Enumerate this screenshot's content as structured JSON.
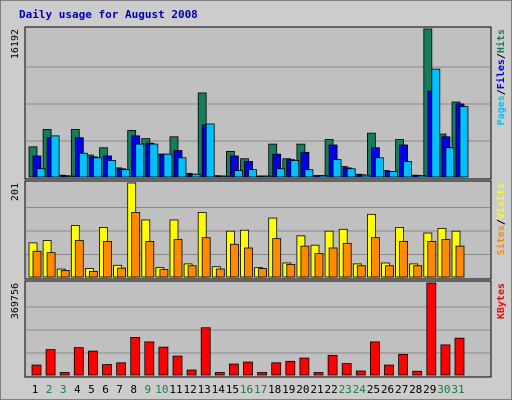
{
  "window": {
    "title": "Daily usage for August 2008"
  },
  "colors": {
    "background": "#cccccc",
    "plot_background": "#c0c0c0",
    "title_text": "#0000b0",
    "hits": "#157d5e",
    "files": "#0000e0",
    "pages": "#00c0ff",
    "visits": "#ffff00",
    "sites": "#ff8a00",
    "kbytes": "#ff0000",
    "weekend_day_label": "#15803d",
    "weekday_label": "#000000"
  },
  "chart_data": [
    {
      "type": "bar",
      "title": "Daily usage for August 2008",
      "ylabel_max": "16192",
      "ylim": [
        0,
        16192
      ],
      "legend": [
        "Pages",
        "Files",
        "Hits"
      ],
      "legend_placement": "right-vertical",
      "categories": [
        "1",
        "2",
        "3",
        "4",
        "5",
        "6",
        "7",
        "8",
        "9",
        "10",
        "11",
        "12",
        "13",
        "14",
        "15",
        "16",
        "17",
        "18",
        "19",
        "20",
        "21",
        "22",
        "23",
        "24",
        "25",
        "26",
        "27",
        "28",
        "29",
        "30",
        "31"
      ],
      "weekend_days": [
        "2",
        "3",
        "9",
        "10",
        "16",
        "17",
        "23",
        "24",
        "30",
        "31"
      ],
      "series": [
        {
          "name": "Hits",
          "values": [
            3300,
            5200,
            200,
            5200,
            2400,
            3200,
            1000,
            5100,
            4200,
            2500,
            4400,
            400,
            9200,
            150,
            2800,
            2000,
            100,
            3600,
            2000,
            3600,
            150,
            4100,
            1150,
            300,
            4800,
            700,
            4100,
            200,
            16192,
            4700,
            8200
          ]
        },
        {
          "name": "Files",
          "values": [
            2300,
            4300,
            150,
            4300,
            2200,
            2300,
            900,
            4500,
            3700,
            2500,
            2900,
            300,
            5700,
            100,
            2300,
            1700,
            80,
            2500,
            1900,
            2700,
            150,
            3500,
            1000,
            250,
            3200,
            600,
            3500,
            150,
            9400,
            4400,
            8000
          ]
        },
        {
          "name": "Pages",
          "values": [
            900,
            4500,
            100,
            2600,
            2100,
            1800,
            800,
            3600,
            3600,
            2500,
            2100,
            300,
            5800,
            100,
            700,
            800,
            70,
            900,
            1800,
            800,
            150,
            1900,
            900,
            200,
            2100,
            600,
            1700,
            150,
            11800,
            3200,
            7700
          ]
        }
      ]
    },
    {
      "type": "bar",
      "ylabel_max": "201",
      "ylim": [
        0,
        201
      ],
      "legend": [
        "Sites",
        "Visits"
      ],
      "legend_placement": "right-vertical",
      "categories": [
        "1",
        "2",
        "3",
        "4",
        "5",
        "6",
        "7",
        "8",
        "9",
        "10",
        "11",
        "12",
        "13",
        "14",
        "15",
        "16",
        "17",
        "18",
        "19",
        "20",
        "21",
        "22",
        "23",
        "24",
        "25",
        "26",
        "27",
        "28",
        "29",
        "30",
        "31"
      ],
      "series": [
        {
          "name": "Visits",
          "values": [
            73,
            78,
            17,
            110,
            18,
            106,
            25,
            201,
            122,
            20,
            122,
            28,
            138,
            22,
            98,
            100,
            20,
            126,
            30,
            88,
            68,
            98,
            102,
            28,
            134,
            30,
            106,
            28,
            94,
            104,
            98
          ]
        },
        {
          "name": "Sites",
          "values": [
            55,
            52,
            14,
            78,
            12,
            76,
            19,
            138,
            76,
            16,
            80,
            24,
            84,
            17,
            70,
            62,
            18,
            82,
            27,
            66,
            50,
            62,
            72,
            24,
            84,
            24,
            76,
            24,
            76,
            80,
            66
          ]
        }
      ]
    },
    {
      "type": "bar",
      "ylabel_max": "369756",
      "ylim": [
        0,
        369756
      ],
      "legend": [
        "KBytes"
      ],
      "legend_placement": "right-vertical",
      "categories": [
        "1",
        "2",
        "3",
        "4",
        "5",
        "6",
        "7",
        "8",
        "9",
        "10",
        "11",
        "12",
        "13",
        "14",
        "15",
        "16",
        "17",
        "18",
        "19",
        "20",
        "21",
        "22",
        "23",
        "24",
        "25",
        "26",
        "27",
        "28",
        "29",
        "30",
        "31"
      ],
      "series": [
        {
          "name": "KBytes",
          "values": [
            40000,
            102000,
            10000,
            110000,
            96000,
            42000,
            49000,
            151000,
            133000,
            112000,
            76000,
            20000,
            190000,
            10000,
            44000,
            52000,
            10000,
            49000,
            55000,
            68000,
            10000,
            79000,
            46000,
            16000,
            133000,
            40000,
            83000,
            15000,
            369756,
            121000,
            148000
          ]
        }
      ]
    }
  ]
}
